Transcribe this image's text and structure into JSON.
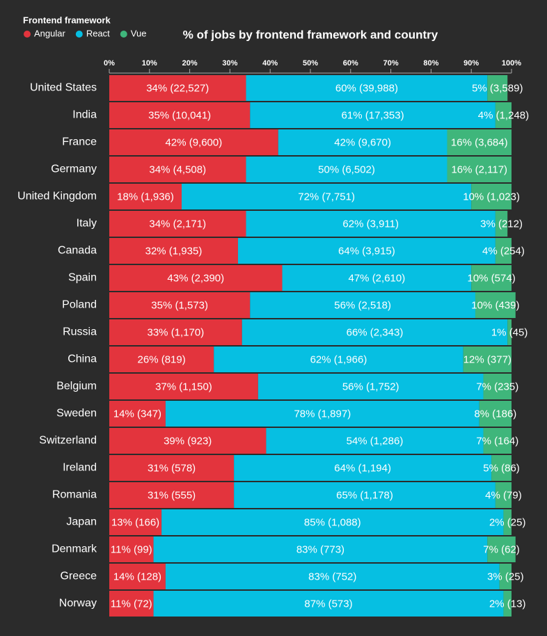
{
  "chart_data": {
    "type": "stacked-bar-horizontal",
    "title": "% of jobs by frontend framework and country",
    "legend_title": "Frontend framework",
    "legend": "top-left",
    "categories": [
      "United States",
      "India",
      "France",
      "Germany",
      "United Kingdom",
      "Italy",
      "Canada",
      "Spain",
      "Poland",
      "Russia",
      "China",
      "Belgium",
      "Sweden",
      "Switzerland",
      "Ireland",
      "Romania",
      "Japan",
      "Denmark",
      "Greece",
      "Norway"
    ],
    "series": [
      {
        "name": "Angular",
        "color": "#e3343d",
        "values": [
          34,
          35,
          42,
          34,
          18,
          34,
          32,
          43,
          35,
          33,
          26,
          37,
          14,
          39,
          31,
          31,
          13,
          11,
          14,
          11
        ],
        "value_labels": [
          "34% (22,527)",
          "35% (10,041)",
          "42% (9,600)",
          "34% (4,508)",
          "18% (1,936)",
          "34% (2,171)",
          "32% (1,935)",
          "43% (2,390)",
          "35% (1,573)",
          "33% (1,170)",
          "26% (819)",
          "37% (1,150)",
          "14% (347)",
          "39% (923)",
          "31% (578)",
          "31% (555)",
          "13% (166)",
          "11% (99)",
          "14% (128)",
          "11% (72)"
        ]
      },
      {
        "name": "React",
        "color": "#06bfe2",
        "values": [
          60,
          61,
          42,
          50,
          72,
          62,
          64,
          47,
          56,
          66,
          62,
          56,
          78,
          54,
          64,
          65,
          85,
          83,
          83,
          87
        ],
        "value_labels": [
          "60% (39,988)",
          "61% (17,353)",
          "42% (9,670)",
          "50% (6,502)",
          "72% (7,751)",
          "62% (3,911)",
          "64% (3,915)",
          "47% (2,610)",
          "56% (2,518)",
          "66% (2,343)",
          "62% (1,966)",
          "56% (1,752)",
          "78% (1,897)",
          "54% (1,286)",
          "64% (1,194)",
          "65% (1,178)",
          "85% (1,088)",
          "83% (773)",
          "83% (752)",
          "87% (573)"
        ]
      },
      {
        "name": "Vue",
        "color": "#3fb67b",
        "values": [
          5,
          4,
          16,
          16,
          10,
          3,
          4,
          10,
          10,
          1,
          12,
          7,
          8,
          7,
          5,
          4,
          2,
          7,
          3,
          2
        ],
        "value_labels": [
          "5% (3,589)",
          "4% (1,248)",
          "16% (3,684)",
          "16% (2,117)",
          "10% (1,023)",
          "3% (212)",
          "4% (254)",
          "10% (574)",
          "10% (439)",
          "1% (45)",
          "12% (377)",
          "7% (235)",
          "8% (186)",
          "7% (164)",
          "5% (86)",
          "4% (79)",
          "2% (25)",
          "7% (62)",
          "3% (25)",
          "2% (13)"
        ]
      }
    ],
    "xlim": [
      0,
      100
    ],
    "xticks": [
      {
        "value": 0,
        "label": "0%"
      },
      {
        "value": 10,
        "label": "10%"
      },
      {
        "value": 20,
        "label": "20%"
      },
      {
        "value": 30,
        "label": "30%"
      },
      {
        "value": 40,
        "label": "40%"
      },
      {
        "value": 50,
        "label": "50%"
      },
      {
        "value": 60,
        "label": "60%"
      },
      {
        "value": 70,
        "label": "70%"
      },
      {
        "value": 80,
        "label": "80%"
      },
      {
        "value": 90,
        "label": "90%"
      },
      {
        "value": 100,
        "label": "100%"
      }
    ]
  }
}
